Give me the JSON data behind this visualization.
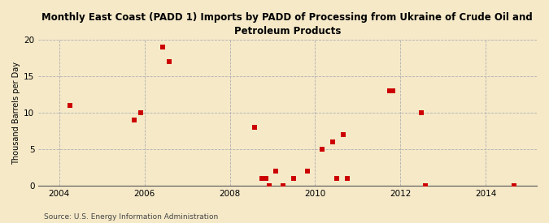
{
  "title": "Monthly East Coast (PADD 1) Imports by PADD of Processing from Ukraine of Crude Oil and\nPetroleum Products",
  "ylabel": "Thousand Barrels per Day",
  "source": "Source: U.S. Energy Information Administration",
  "background_color": "#f5e9c8",
  "plot_background_color": "#f5e9c8",
  "marker_color": "#cc0000",
  "xlim": [
    2003.5,
    2015.2
  ],
  "ylim": [
    0,
    20
  ],
  "xticks": [
    2004,
    2006,
    2008,
    2010,
    2012,
    2014
  ],
  "yticks": [
    0,
    5,
    10,
    15,
    20
  ],
  "data_x": [
    2004.25,
    2005.75,
    2005.92,
    2006.42,
    2006.58,
    2008.58,
    2008.75,
    2008.85,
    2008.92,
    2009.08,
    2009.25,
    2009.5,
    2009.83,
    2010.17,
    2010.42,
    2010.5,
    2010.67,
    2010.75,
    2011.75,
    2011.83,
    2012.5,
    2012.58,
    2014.67
  ],
  "data_y": [
    11,
    9,
    10,
    19,
    17,
    8,
    1,
    1,
    0,
    2,
    0,
    1,
    2,
    5,
    6,
    1,
    7,
    1,
    13,
    13,
    10,
    0,
    0
  ]
}
